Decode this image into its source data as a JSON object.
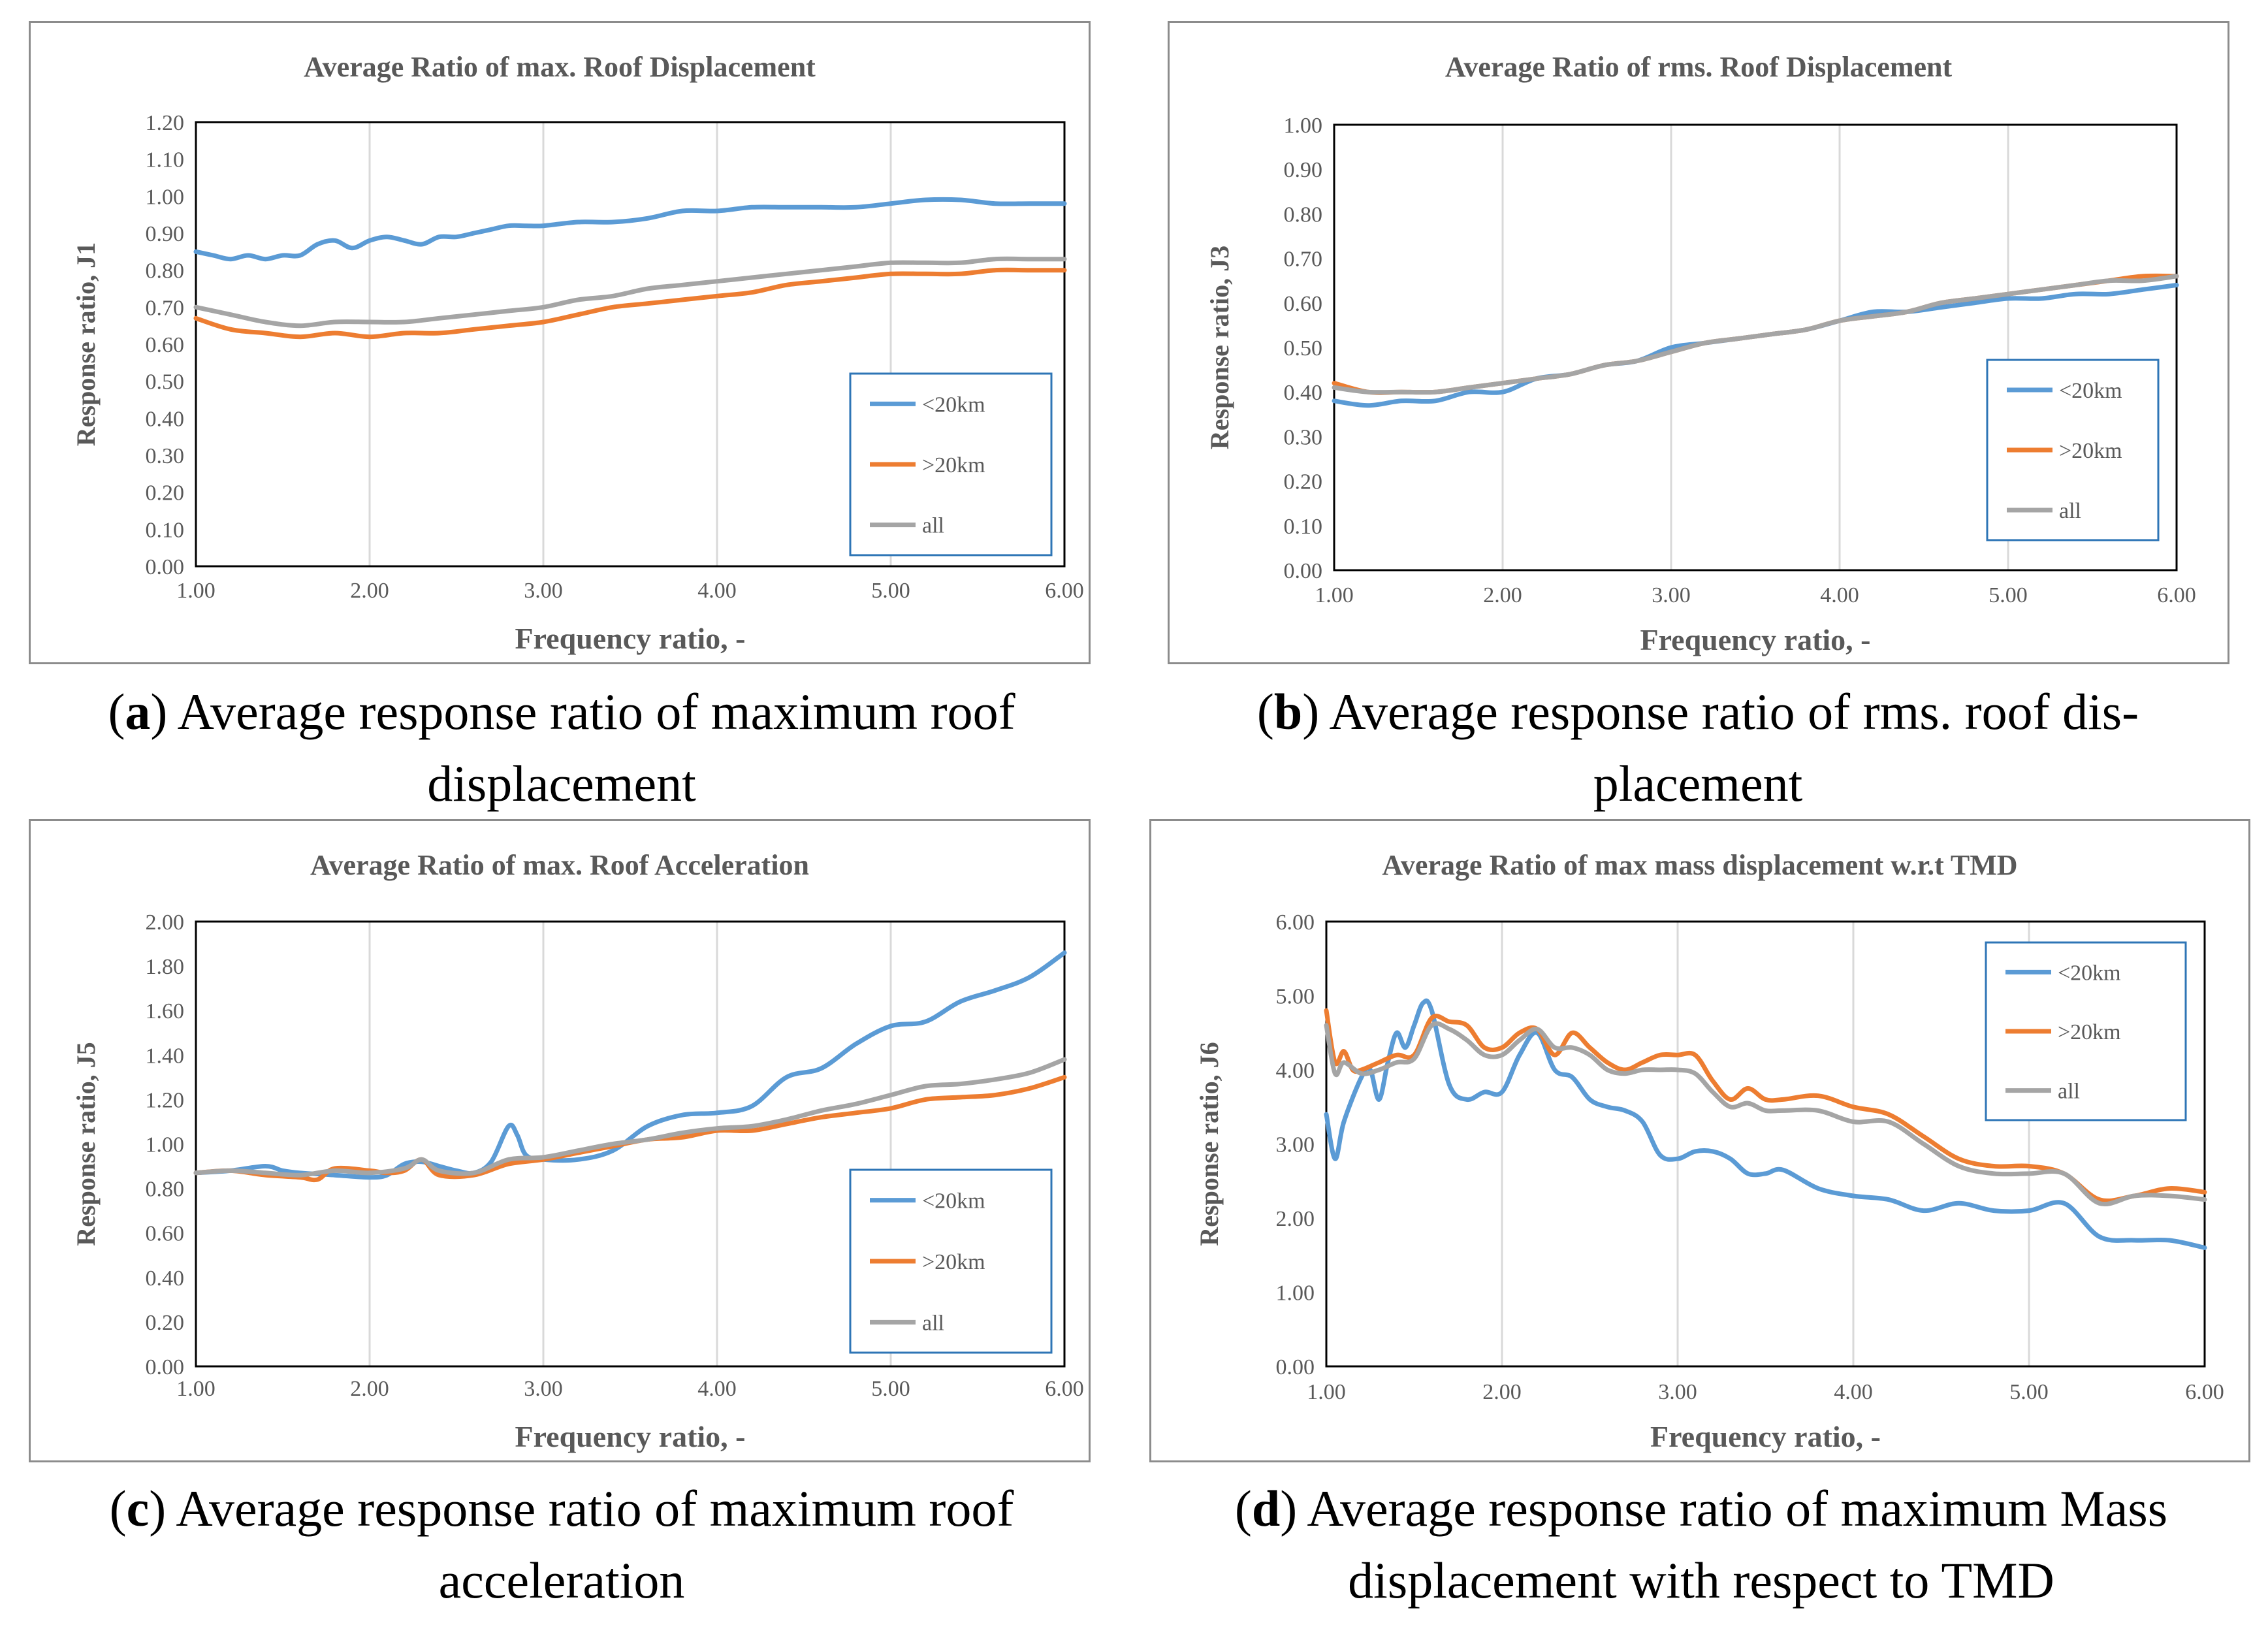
{
  "chart_data": [
    {
      "id": "a",
      "type": "line",
      "title": "Average Ratio of max. Roof Displacement",
      "xlabel": "Frequency ratio, -",
      "ylabel": "Response ratio, J1",
      "xlim": [
        1.0,
        6.0
      ],
      "ylim": [
        0.0,
        1.2
      ],
      "xticks": [
        "1.00",
        "2.00",
        "3.00",
        "4.00",
        "5.00",
        "6.00"
      ],
      "yticks": [
        "0.00",
        "0.10",
        "0.20",
        "0.30",
        "0.40",
        "0.50",
        "0.60",
        "0.70",
        "0.80",
        "0.90",
        "1.00",
        "1.10",
        "1.20"
      ],
      "grid": "vertical",
      "legend_position": "bottom-right",
      "series": [
        {
          "name": "<20km",
          "color": "#5b9bd5",
          "x": [
            1.0,
            1.1,
            1.2,
            1.3,
            1.4,
            1.5,
            1.6,
            1.7,
            1.8,
            1.9,
            2.0,
            2.1,
            2.2,
            2.3,
            2.4,
            2.5,
            2.6,
            2.7,
            2.8,
            2.9,
            3.0,
            3.2,
            3.4,
            3.6,
            3.8,
            4.0,
            4.2,
            4.4,
            4.6,
            4.8,
            5.0,
            5.2,
            5.4,
            5.6,
            5.8,
            6.0
          ],
          "y": [
            0.85,
            0.84,
            0.83,
            0.84,
            0.83,
            0.84,
            0.84,
            0.87,
            0.88,
            0.86,
            0.88,
            0.89,
            0.88,
            0.87,
            0.89,
            0.89,
            0.9,
            0.91,
            0.92,
            0.92,
            0.92,
            0.93,
            0.93,
            0.94,
            0.96,
            0.96,
            0.97,
            0.97,
            0.97,
            0.97,
            0.98,
            0.99,
            0.99,
            0.98,
            0.98,
            0.98
          ]
        },
        {
          "name": ">20km",
          "color": "#ed7d31",
          "x": [
            1.0,
            1.2,
            1.4,
            1.6,
            1.8,
            2.0,
            2.2,
            2.4,
            2.6,
            2.8,
            3.0,
            3.2,
            3.4,
            3.6,
            3.8,
            4.0,
            4.2,
            4.4,
            4.6,
            4.8,
            5.0,
            5.2,
            5.4,
            5.6,
            5.8,
            6.0
          ],
          "y": [
            0.67,
            0.64,
            0.63,
            0.62,
            0.63,
            0.62,
            0.63,
            0.63,
            0.64,
            0.65,
            0.66,
            0.68,
            0.7,
            0.71,
            0.72,
            0.73,
            0.74,
            0.76,
            0.77,
            0.78,
            0.79,
            0.79,
            0.79,
            0.8,
            0.8,
            0.8
          ]
        },
        {
          "name": "all",
          "color": "#a5a5a5",
          "x": [
            1.0,
            1.2,
            1.4,
            1.6,
            1.8,
            2.0,
            2.2,
            2.4,
            2.6,
            2.8,
            3.0,
            3.2,
            3.4,
            3.6,
            3.8,
            4.0,
            4.2,
            4.4,
            4.6,
            4.8,
            5.0,
            5.2,
            5.4,
            5.6,
            5.8,
            6.0
          ],
          "y": [
            0.7,
            0.68,
            0.66,
            0.65,
            0.66,
            0.66,
            0.66,
            0.67,
            0.68,
            0.69,
            0.7,
            0.72,
            0.73,
            0.75,
            0.76,
            0.77,
            0.78,
            0.79,
            0.8,
            0.81,
            0.82,
            0.82,
            0.82,
            0.83,
            0.83,
            0.83
          ]
        }
      ]
    },
    {
      "id": "b",
      "type": "line",
      "title": "Average Ratio of rms. Roof Displacement",
      "xlabel": "Frequency ratio, -",
      "ylabel": "Response ratio, J3",
      "xlim": [
        1.0,
        6.0
      ],
      "ylim": [
        0.0,
        1.0
      ],
      "xticks": [
        "1.00",
        "2.00",
        "3.00",
        "4.00",
        "5.00",
        "6.00"
      ],
      "yticks": [
        "0.00",
        "0.10",
        "0.20",
        "0.30",
        "0.40",
        "0.50",
        "0.60",
        "0.70",
        "0.80",
        "0.90",
        "1.00"
      ],
      "grid": "vertical",
      "legend_position": "bottom-right",
      "series": [
        {
          "name": "<20km",
          "color": "#5b9bd5",
          "x": [
            1.0,
            1.2,
            1.4,
            1.6,
            1.8,
            2.0,
            2.2,
            2.4,
            2.6,
            2.8,
            3.0,
            3.2,
            3.4,
            3.6,
            3.8,
            4.0,
            4.2,
            4.4,
            4.6,
            4.8,
            5.0,
            5.2,
            5.4,
            5.6,
            5.8,
            6.0
          ],
          "y": [
            0.38,
            0.37,
            0.38,
            0.38,
            0.4,
            0.4,
            0.43,
            0.44,
            0.46,
            0.47,
            0.5,
            0.51,
            0.52,
            0.53,
            0.54,
            0.56,
            0.58,
            0.58,
            0.59,
            0.6,
            0.61,
            0.61,
            0.62,
            0.62,
            0.63,
            0.64
          ]
        },
        {
          "name": ">20km",
          "color": "#ed7d31",
          "x": [
            1.0,
            1.2,
            1.4,
            1.6,
            1.8,
            2.0,
            2.2,
            2.4,
            2.6,
            2.8,
            3.0,
            3.2,
            3.4,
            3.6,
            3.8,
            4.0,
            4.2,
            4.4,
            4.6,
            4.8,
            5.0,
            5.2,
            5.4,
            5.6,
            5.8,
            6.0
          ],
          "y": [
            0.42,
            0.4,
            0.4,
            0.4,
            0.41,
            0.42,
            0.43,
            0.44,
            0.46,
            0.47,
            0.49,
            0.51,
            0.52,
            0.53,
            0.54,
            0.56,
            0.57,
            0.58,
            0.6,
            0.61,
            0.62,
            0.63,
            0.64,
            0.65,
            0.66,
            0.66
          ]
        },
        {
          "name": "all",
          "color": "#a5a5a5",
          "x": [
            1.0,
            1.2,
            1.4,
            1.6,
            1.8,
            2.0,
            2.2,
            2.4,
            2.6,
            2.8,
            3.0,
            3.2,
            3.4,
            3.6,
            3.8,
            4.0,
            4.2,
            4.4,
            4.6,
            4.8,
            5.0,
            5.2,
            5.4,
            5.6,
            5.8,
            6.0
          ],
          "y": [
            0.41,
            0.4,
            0.4,
            0.4,
            0.41,
            0.42,
            0.43,
            0.44,
            0.46,
            0.47,
            0.49,
            0.51,
            0.52,
            0.53,
            0.54,
            0.56,
            0.57,
            0.58,
            0.6,
            0.61,
            0.62,
            0.63,
            0.64,
            0.65,
            0.65,
            0.66
          ]
        }
      ]
    },
    {
      "id": "c",
      "type": "line",
      "title": "Average Ratio of max. Roof Acceleration",
      "xlabel": "Frequency ratio, -",
      "ylabel": "Response ratio, J5",
      "xlim": [
        1.0,
        6.0
      ],
      "ylim": [
        0.0,
        2.0
      ],
      "xticks": [
        "1.00",
        "2.00",
        "3.00",
        "4.00",
        "5.00",
        "6.00"
      ],
      "yticks": [
        "0.00",
        "0.20",
        "0.40",
        "0.60",
        "0.80",
        "1.00",
        "1.20",
        "1.40",
        "1.60",
        "1.80",
        "2.00"
      ],
      "grid": "vertical",
      "legend_position": "bottom-right",
      "series": [
        {
          "name": "<20km",
          "color": "#5b9bd5",
          "x": [
            1.0,
            1.2,
            1.4,
            1.5,
            1.6,
            1.8,
            2.0,
            2.1,
            2.2,
            2.3,
            2.4,
            2.5,
            2.6,
            2.7,
            2.8,
            2.85,
            2.9,
            3.0,
            3.2,
            3.4,
            3.6,
            3.8,
            4.0,
            4.2,
            4.4,
            4.6,
            4.8,
            5.0,
            5.2,
            5.4,
            5.6,
            5.8,
            6.0
          ],
          "y": [
            0.87,
            0.88,
            0.9,
            0.88,
            0.87,
            0.86,
            0.85,
            0.86,
            0.91,
            0.92,
            0.9,
            0.88,
            0.87,
            0.92,
            1.08,
            1.04,
            0.95,
            0.93,
            0.93,
            0.97,
            1.08,
            1.13,
            1.14,
            1.17,
            1.3,
            1.34,
            1.45,
            1.53,
            1.55,
            1.64,
            1.69,
            1.75,
            1.86
          ]
        },
        {
          "name": ">20km",
          "color": "#ed7d31",
          "x": [
            1.0,
            1.2,
            1.4,
            1.6,
            1.7,
            1.8,
            2.0,
            2.1,
            2.2,
            2.3,
            2.4,
            2.6,
            2.8,
            3.0,
            3.2,
            3.4,
            3.6,
            3.8,
            4.0,
            4.2,
            4.4,
            4.6,
            4.8,
            5.0,
            5.2,
            5.4,
            5.6,
            5.8,
            6.0
          ],
          "y": [
            0.87,
            0.88,
            0.86,
            0.85,
            0.84,
            0.89,
            0.88,
            0.87,
            0.88,
            0.93,
            0.86,
            0.86,
            0.91,
            0.93,
            0.96,
            0.99,
            1.02,
            1.03,
            1.06,
            1.06,
            1.09,
            1.12,
            1.14,
            1.16,
            1.2,
            1.21,
            1.22,
            1.25,
            1.3
          ]
        },
        {
          "name": "all",
          "color": "#a5a5a5",
          "x": [
            1.0,
            1.2,
            1.4,
            1.6,
            1.8,
            2.0,
            2.2,
            2.3,
            2.4,
            2.6,
            2.8,
            3.0,
            3.2,
            3.4,
            3.6,
            3.8,
            4.0,
            4.2,
            4.4,
            4.6,
            4.8,
            5.0,
            5.2,
            5.4,
            5.6,
            5.8,
            6.0
          ],
          "y": [
            0.87,
            0.88,
            0.87,
            0.86,
            0.88,
            0.87,
            0.89,
            0.93,
            0.88,
            0.87,
            0.93,
            0.94,
            0.97,
            1.0,
            1.02,
            1.05,
            1.07,
            1.08,
            1.11,
            1.15,
            1.18,
            1.22,
            1.26,
            1.27,
            1.29,
            1.32,
            1.38
          ]
        }
      ]
    },
    {
      "id": "d",
      "type": "line",
      "title": "Average Ratio of max mass displacement w.r.t TMD",
      "xlabel": "Frequency ratio, -",
      "ylabel": "Response ratio, J6",
      "xlim": [
        1.0,
        6.0
      ],
      "ylim": [
        0.0,
        6.0
      ],
      "xticks": [
        "1.00",
        "2.00",
        "3.00",
        "4.00",
        "5.00",
        "6.00"
      ],
      "yticks": [
        "0.00",
        "1.00",
        "2.00",
        "3.00",
        "4.00",
        "5.00",
        "6.00"
      ],
      "grid": "vertical",
      "legend_position": "top-right",
      "series": [
        {
          "name": "<20km",
          "color": "#5b9bd5",
          "x": [
            1.0,
            1.05,
            1.1,
            1.2,
            1.25,
            1.3,
            1.35,
            1.4,
            1.45,
            1.5,
            1.55,
            1.6,
            1.7,
            1.8,
            1.9,
            2.0,
            2.1,
            2.2,
            2.3,
            2.4,
            2.5,
            2.6,
            2.7,
            2.8,
            2.9,
            3.0,
            3.1,
            3.2,
            3.3,
            3.4,
            3.5,
            3.6,
            3.8,
            4.0,
            4.2,
            4.4,
            4.6,
            4.8,
            5.0,
            5.2,
            5.4,
            5.6,
            5.8,
            6.0
          ],
          "y": [
            3.4,
            2.8,
            3.3,
            3.9,
            4.0,
            3.6,
            4.1,
            4.5,
            4.3,
            4.6,
            4.9,
            4.8,
            3.8,
            3.6,
            3.7,
            3.7,
            4.2,
            4.5,
            4.0,
            3.9,
            3.6,
            3.5,
            3.45,
            3.3,
            2.85,
            2.8,
            2.9,
            2.9,
            2.8,
            2.6,
            2.6,
            2.65,
            2.4,
            2.3,
            2.25,
            2.1,
            2.2,
            2.1,
            2.1,
            2.2,
            1.75,
            1.7,
            1.7,
            1.6
          ]
        },
        {
          "name": ">20km",
          "color": "#ed7d31",
          "x": [
            1.0,
            1.05,
            1.1,
            1.15,
            1.2,
            1.3,
            1.4,
            1.5,
            1.6,
            1.7,
            1.8,
            1.9,
            2.0,
            2.1,
            2.2,
            2.3,
            2.4,
            2.5,
            2.6,
            2.7,
            2.8,
            2.9,
            3.0,
            3.1,
            3.2,
            3.3,
            3.4,
            3.5,
            3.6,
            3.8,
            4.0,
            4.2,
            4.4,
            4.6,
            4.8,
            5.0,
            5.2,
            5.4,
            5.6,
            5.8,
            6.0
          ],
          "y": [
            4.8,
            4.1,
            4.25,
            4.0,
            4.0,
            4.1,
            4.2,
            4.2,
            4.7,
            4.65,
            4.6,
            4.3,
            4.3,
            4.5,
            4.55,
            4.2,
            4.5,
            4.3,
            4.1,
            4.0,
            4.1,
            4.2,
            4.2,
            4.2,
            3.85,
            3.6,
            3.75,
            3.6,
            3.6,
            3.65,
            3.5,
            3.4,
            3.1,
            2.8,
            2.7,
            2.7,
            2.6,
            2.25,
            2.3,
            2.4,
            2.35
          ]
        },
        {
          "name": "all",
          "color": "#a5a5a5",
          "x": [
            1.0,
            1.05,
            1.1,
            1.2,
            1.3,
            1.4,
            1.5,
            1.6,
            1.7,
            1.8,
            1.9,
            2.0,
            2.1,
            2.2,
            2.3,
            2.4,
            2.5,
            2.6,
            2.7,
            2.8,
            2.9,
            3.0,
            3.1,
            3.2,
            3.3,
            3.4,
            3.5,
            3.6,
            3.8,
            4.0,
            4.2,
            4.4,
            4.6,
            4.8,
            5.0,
            5.2,
            5.4,
            5.6,
            5.8,
            6.0
          ],
          "y": [
            4.6,
            3.95,
            4.1,
            3.95,
            4.0,
            4.1,
            4.15,
            4.6,
            4.55,
            4.4,
            4.2,
            4.2,
            4.4,
            4.55,
            4.3,
            4.3,
            4.2,
            4.0,
            3.95,
            4.0,
            4.0,
            4.0,
            3.95,
            3.7,
            3.5,
            3.55,
            3.45,
            3.45,
            3.45,
            3.3,
            3.3,
            3.0,
            2.7,
            2.6,
            2.6,
            2.6,
            2.2,
            2.3,
            2.3,
            2.25
          ]
        }
      ]
    }
  ],
  "captions": [
    {
      "id": "a",
      "label": "a",
      "line1": ") Average response ratio of maximum roof",
      "line2": "displacement"
    },
    {
      "id": "b",
      "label": "b",
      "line1": ") Average response ratio of rms. roof dis-",
      "line2": "placement"
    },
    {
      "id": "c",
      "label": "c",
      "line1": ") Average response ratio of maximum roof",
      "line2": "acceleration"
    },
    {
      "id": "d",
      "label": "d",
      "line1": ") Average response ratio of maximum Mass",
      "line2": "displacement with respect to TMD"
    }
  ]
}
